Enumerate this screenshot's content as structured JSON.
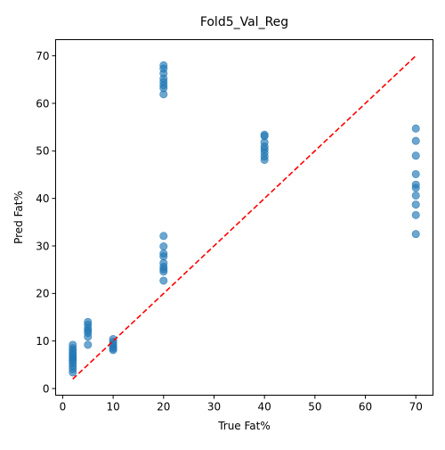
{
  "chart_data": {
    "type": "scatter",
    "title": "Fold5_Val_Reg",
    "xlabel": "True Fat%",
    "ylabel": "Pred Fat%",
    "xlim": [
      -1.4,
      73.4
    ],
    "ylim": [
      -1.4,
      73.4
    ],
    "xticks": [
      0,
      10,
      20,
      30,
      40,
      50,
      60,
      70
    ],
    "yticks": [
      0,
      10,
      20,
      30,
      40,
      50,
      60,
      70
    ],
    "grid": false,
    "point_color": "#1f77b4",
    "reference_line": {
      "from": [
        2,
        2
      ],
      "to": [
        70,
        70
      ],
      "color": "#ff0000",
      "style": "dashed"
    },
    "points": [
      {
        "x": 2,
        "y": 9.2
      },
      {
        "x": 2,
        "y": 8.5
      },
      {
        "x": 2,
        "y": 8.0
      },
      {
        "x": 2,
        "y": 7.5
      },
      {
        "x": 2,
        "y": 7.0
      },
      {
        "x": 2,
        "y": 6.6
      },
      {
        "x": 2,
        "y": 6.2
      },
      {
        "x": 2,
        "y": 5.8
      },
      {
        "x": 2,
        "y": 5.3
      },
      {
        "x": 2,
        "y": 4.7
      },
      {
        "x": 2,
        "y": 4.1
      },
      {
        "x": 2,
        "y": 3.4
      },
      {
        "x": 5,
        "y": 14.0
      },
      {
        "x": 5,
        "y": 13.4
      },
      {
        "x": 5,
        "y": 12.7
      },
      {
        "x": 5,
        "y": 12.2
      },
      {
        "x": 5,
        "y": 11.7
      },
      {
        "x": 5,
        "y": 10.9
      },
      {
        "x": 5,
        "y": 9.2
      },
      {
        "x": 10,
        "y": 10.4
      },
      {
        "x": 10,
        "y": 9.8
      },
      {
        "x": 10,
        "y": 9.3
      },
      {
        "x": 10,
        "y": 8.8
      },
      {
        "x": 10,
        "y": 8.4
      },
      {
        "x": 10,
        "y": 8.1
      },
      {
        "x": 20,
        "y": 68.0
      },
      {
        "x": 20,
        "y": 67.3
      },
      {
        "x": 20,
        "y": 66.3
      },
      {
        "x": 20,
        "y": 65.2
      },
      {
        "x": 20,
        "y": 64.5
      },
      {
        "x": 20,
        "y": 63.8
      },
      {
        "x": 20,
        "y": 63.2
      },
      {
        "x": 20,
        "y": 61.9
      },
      {
        "x": 20,
        "y": 32.1
      },
      {
        "x": 20,
        "y": 29.9
      },
      {
        "x": 20,
        "y": 28.4
      },
      {
        "x": 20,
        "y": 27.8
      },
      {
        "x": 20,
        "y": 26.4
      },
      {
        "x": 20,
        "y": 25.6
      },
      {
        "x": 20,
        "y": 25.1
      },
      {
        "x": 20,
        "y": 24.6
      },
      {
        "x": 20,
        "y": 22.7
      },
      {
        "x": 40,
        "y": 53.4
      },
      {
        "x": 40,
        "y": 53.1
      },
      {
        "x": 40,
        "y": 51.8
      },
      {
        "x": 40,
        "y": 50.9
      },
      {
        "x": 40,
        "y": 50.3
      },
      {
        "x": 40,
        "y": 49.6
      },
      {
        "x": 40,
        "y": 48.8
      },
      {
        "x": 40,
        "y": 48.1
      },
      {
        "x": 70,
        "y": 54.7
      },
      {
        "x": 70,
        "y": 52.1
      },
      {
        "x": 70,
        "y": 49.0
      },
      {
        "x": 70,
        "y": 45.1
      },
      {
        "x": 70,
        "y": 42.9
      },
      {
        "x": 70,
        "y": 42.2
      },
      {
        "x": 70,
        "y": 40.6
      },
      {
        "x": 70,
        "y": 38.7
      },
      {
        "x": 70,
        "y": 36.5
      },
      {
        "x": 70,
        "y": 32.5
      }
    ]
  }
}
